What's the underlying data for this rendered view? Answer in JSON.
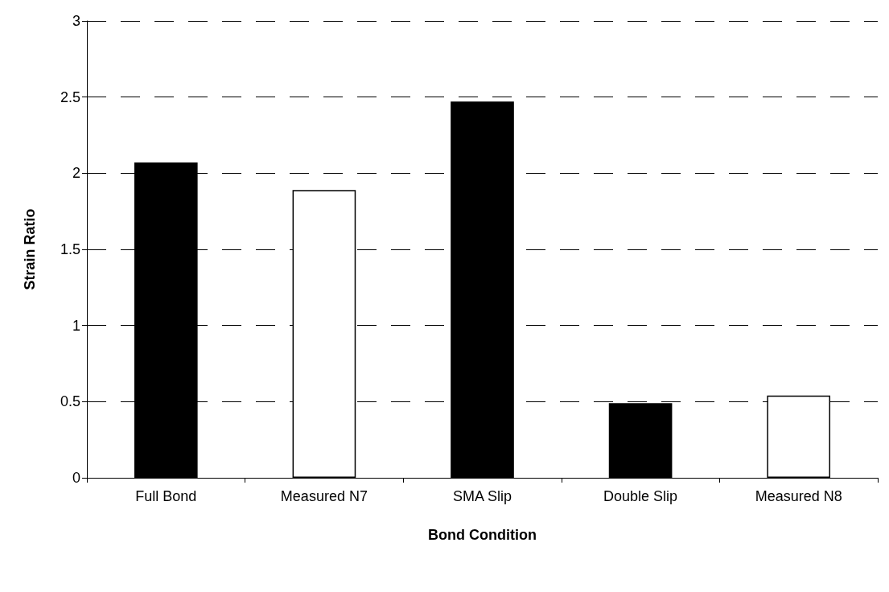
{
  "chart_data": {
    "type": "bar",
    "xlabel": "Bond Condition",
    "ylabel": "Strain Ratio",
    "categories": [
      "Full Bond",
      "Measured N7",
      "SMA Slip",
      "Double Slip",
      "Measured N8"
    ],
    "values": [
      2.07,
      1.89,
      2.47,
      0.49,
      0.54
    ],
    "colors": [
      "#000000",
      "#ffffff",
      "#000000",
      "#000000",
      "#ffffff"
    ],
    "ylim": [
      0,
      3
    ],
    "yticks": [
      0,
      0.5,
      1,
      1.5,
      2,
      2.5,
      3
    ],
    "grid": "y"
  }
}
